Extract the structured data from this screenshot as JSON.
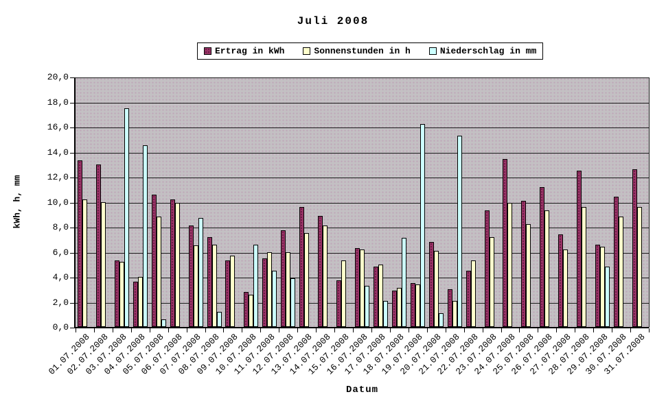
{
  "title": "Juli 2008",
  "axes": {
    "y_title": "kWh, h, mm",
    "x_title": "Datum"
  },
  "colors": {
    "ertrag": "#993366",
    "sonnenstunden": "#FFFFCC",
    "niederschlag": "#CCFFFF",
    "plot_background": "#C0C0C0",
    "gridline": "#000000"
  },
  "chart_data": {
    "type": "bar",
    "title": "Juli 2008",
    "xlabel": "Datum",
    "ylabel": "kWh, h, mm",
    "ylim": [
      0,
      20
    ],
    "ytick_step": 2,
    "y_tick_labels": [
      "0,0",
      "2,0",
      "4,0",
      "6,0",
      "8,0",
      "10,0",
      "12,0",
      "14,0",
      "16,0",
      "18,0",
      "20,0"
    ],
    "grid": true,
    "legend_position": "top-center",
    "categories": [
      "01.07.2008",
      "02.07.2008",
      "03.07.2008",
      "04.07.2008",
      "05.07.2008",
      "06.07.2008",
      "07.07.2008",
      "08.07.2008",
      "09.07.2008",
      "10.07.2008",
      "11.07.2008",
      "12.07.2008",
      "13.07.2008",
      "14.07.2008",
      "15.07.2008",
      "16.07.2008",
      "17.07.2008",
      "18.07.2008",
      "19.07.2008",
      "20.07.2008",
      "21.07.2008",
      "22.07.2008",
      "23.07.2008",
      "24.07.2008",
      "25.07.2008",
      "26.07.2008",
      "27.07.2008",
      "28.07.2008",
      "29.07.2008",
      "30.07.2008",
      "31.07.2008"
    ],
    "series": [
      {
        "name": "Ertrag in kWh",
        "color": "#993366",
        "values": [
          13.3,
          13.0,
          5.3,
          3.6,
          10.6,
          10.2,
          8.1,
          7.2,
          5.3,
          2.8,
          5.5,
          7.7,
          9.6,
          8.9,
          3.7,
          6.3,
          4.8,
          2.9,
          3.5,
          6.8,
          3.0,
          4.5,
          9.3,
          13.4,
          10.1,
          11.2,
          7.4,
          12.5,
          6.6,
          10.4,
          12.6
        ]
      },
      {
        "name": "Sonnenstunden in h",
        "color": "#FFFFCC",
        "values": [
          10.2,
          10.0,
          5.2,
          4.0,
          8.8,
          9.9,
          6.5,
          6.6,
          5.7,
          2.6,
          6.0,
          6.0,
          7.5,
          8.1,
          5.3,
          6.2,
          5.0,
          3.1,
          3.4,
          6.1,
          2.1,
          5.3,
          7.2,
          9.9,
          8.2,
          9.3,
          6.2,
          9.6,
          6.4,
          8.8,
          9.6
        ]
      },
      {
        "name": "Niederschlag in mm",
        "color": "#CCFFFF",
        "values": [
          0,
          0,
          17.5,
          14.5,
          0.6,
          0,
          8.7,
          1.2,
          0,
          6.6,
          4.5,
          3.9,
          0,
          0,
          0,
          3.3,
          2.1,
          7.1,
          16.2,
          1.1,
          15.3,
          0,
          0,
          0,
          0,
          0,
          0,
          0,
          4.8,
          0,
          0
        ]
      }
    ]
  }
}
